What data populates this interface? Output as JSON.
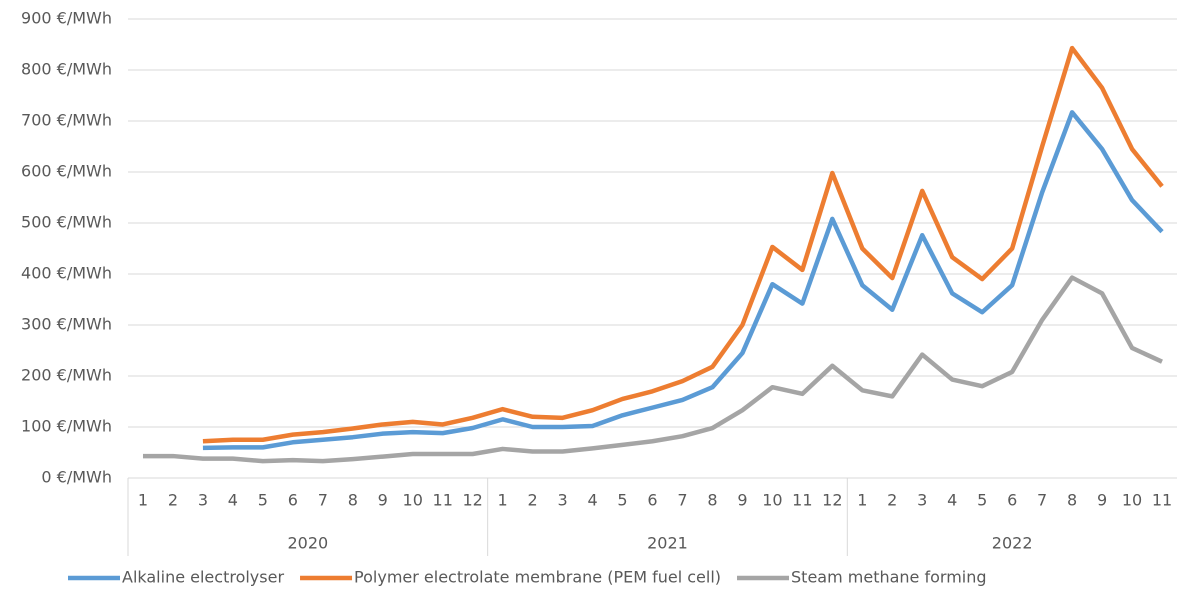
{
  "chart_data": {
    "type": "line",
    "category_groups": [
      {
        "name": "2020",
        "categories": [
          "1",
          "2",
          "3",
          "4",
          "5",
          "6",
          "7",
          "8",
          "9",
          "10",
          "11",
          "12"
        ]
      },
      {
        "name": "2021",
        "categories": [
          "1",
          "2",
          "3",
          "4",
          "5",
          "6",
          "7",
          "8",
          "9",
          "10",
          "11",
          "12"
        ]
      },
      {
        "name": "2022",
        "categories": [
          "1",
          "2",
          "3",
          "4",
          "5",
          "6",
          "7",
          "8",
          "9",
          "10",
          "11"
        ]
      }
    ],
    "series": [
      {
        "name": "Alkaline electrolyser",
        "color": "#5b9bd5",
        "values": [
          null,
          null,
          59,
          60,
          60,
          70,
          75,
          80,
          87,
          90,
          88,
          98,
          115,
          100,
          100,
          102,
          123,
          138,
          153,
          178,
          245,
          380,
          342,
          508,
          378,
          330,
          476,
          362,
          325,
          378,
          560,
          717,
          645,
          545,
          483
        ]
      },
      {
        "name": "Polymer electrolate membrane (PEM fuel cell)",
        "color": "#ed7d31",
        "values": [
          null,
          null,
          72,
          75,
          75,
          85,
          90,
          97,
          105,
          110,
          105,
          118,
          135,
          120,
          118,
          133,
          155,
          170,
          190,
          218,
          300,
          453,
          408,
          598,
          450,
          392,
          563,
          433,
          390,
          450,
          650,
          843,
          765,
          645,
          572
        ]
      },
      {
        "name": "Steam methane forming",
        "color": "#a5a5a5",
        "values": [
          43,
          43,
          38,
          38,
          33,
          35,
          33,
          37,
          42,
          47,
          47,
          47,
          57,
          52,
          52,
          58,
          65,
          72,
          82,
          98,
          133,
          178,
          165,
          220,
          172,
          160,
          242,
          193,
          180,
          208,
          310,
          393,
          362,
          255,
          228
        ]
      }
    ],
    "ylim": [
      0,
      900
    ],
    "yticks": [
      {
        "value": 0,
        "label": "0 €/MWh"
      },
      {
        "value": 100,
        "label": "100 €/MWh"
      },
      {
        "value": 200,
        "label": "200 €/MWh"
      },
      {
        "value": 300,
        "label": "300 €/MWh"
      },
      {
        "value": 400,
        "label": "400 €/MWh"
      },
      {
        "value": 500,
        "label": "500 €/MWh"
      },
      {
        "value": 600,
        "label": "600 €/MWh"
      },
      {
        "value": 700,
        "label": "700 €/MWh"
      },
      {
        "value": 800,
        "label": "800 €/MWh"
      },
      {
        "value": 900,
        "label": "900 €/MWh"
      }
    ],
    "grid": true,
    "legend": "bottom"
  }
}
